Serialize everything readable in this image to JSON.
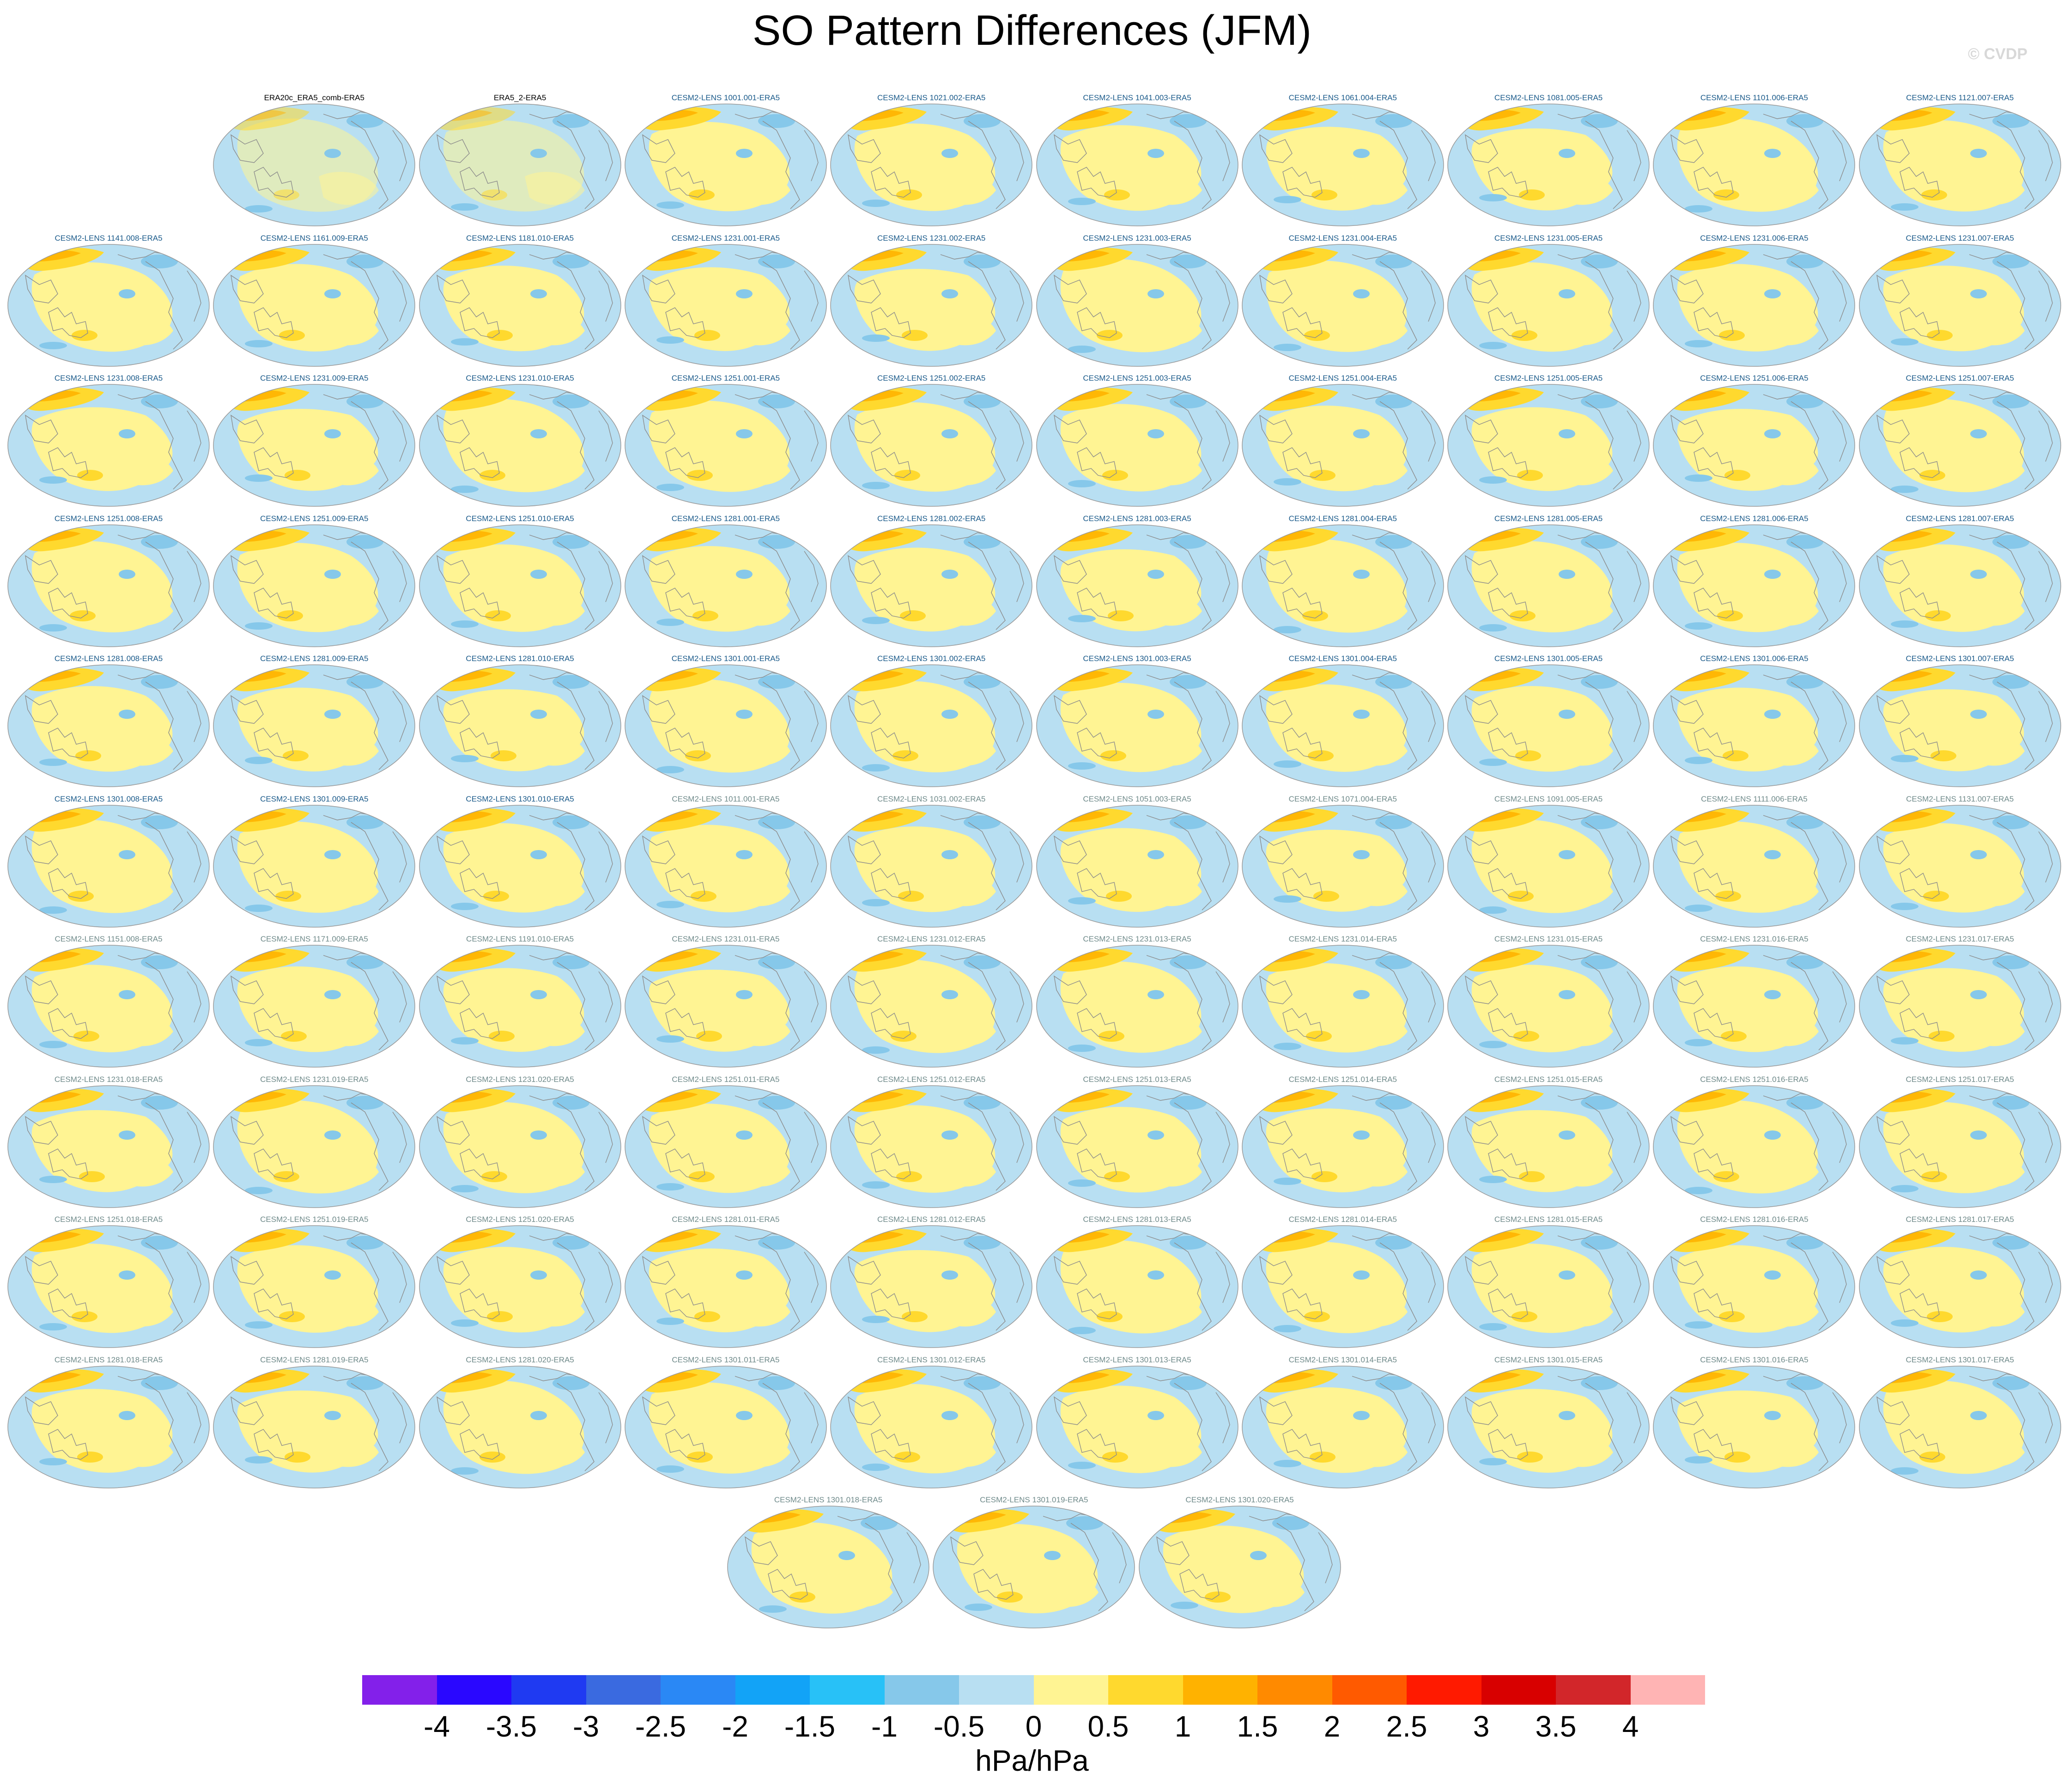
{
  "title": "SO Pattern Differences (JFM)",
  "watermark": "© CVDP",
  "units": "hPa/hPa",
  "colors": {
    "panel_ocean": "#b8dff2",
    "panel_positive": "#fff493",
    "panel_strong_positive": "#ffd92e",
    "panel_high_positive": "#ffb200",
    "panel_negative": "#86c8ea",
    "coastline": "#8c8c8c",
    "label_obs": "#000000",
    "label_set1": "#1a5a8a",
    "label_set2": "#6f8a8a"
  },
  "colorbar": {
    "colors": [
      "#8320ea",
      "#2a07ff",
      "#1f3af2",
      "#3a6ae0",
      "#2a88f5",
      "#12a3f7",
      "#28c1f7",
      "#86c8ea",
      "#b8dff2",
      "#fff493",
      "#ffd92e",
      "#ffb200",
      "#ff8a00",
      "#ff5a00",
      "#ff1a00",
      "#d80000",
      "#d2262a",
      "#ffb4b4"
    ],
    "ticks": [
      "-4",
      "-3.5",
      "-3",
      "-2.5",
      "-2",
      "-1.5",
      "-1",
      "-0.5",
      "0",
      "0.5",
      "1",
      "1.5",
      "2",
      "2.5",
      "3",
      "3.5",
      "4"
    ]
  },
  "panels": [
    {
      "label": "ERA20c_ERA5_comb-ERA5",
      "style": "obs"
    },
    {
      "label": "ERA5_2-ERA5",
      "style": "obs"
    },
    {
      "label": "CESM2-LENS 1001.001-ERA5",
      "style": "set1"
    },
    {
      "label": "CESM2-LENS 1021.002-ERA5",
      "style": "set1"
    },
    {
      "label": "CESM2-LENS 1041.003-ERA5",
      "style": "set1"
    },
    {
      "label": "CESM2-LENS 1061.004-ERA5",
      "style": "set1"
    },
    {
      "label": "CESM2-LENS 1081.005-ERA5",
      "style": "set1"
    },
    {
      "label": "CESM2-LENS 1101.006-ERA5",
      "style": "set1"
    },
    {
      "label": "CESM2-LENS 1121.007-ERA5",
      "style": "set1"
    },
    {
      "label": "CESM2-LENS 1141.008-ERA5",
      "style": "set1"
    },
    {
      "label": "CESM2-LENS 1161.009-ERA5",
      "style": "set1"
    },
    {
      "label": "CESM2-LENS 1181.010-ERA5",
      "style": "set1"
    },
    {
      "label": "CESM2-LENS 1231.001-ERA5",
      "style": "set1"
    },
    {
      "label": "CESM2-LENS 1231.002-ERA5",
      "style": "set1"
    },
    {
      "label": "CESM2-LENS 1231.003-ERA5",
      "style": "set1"
    },
    {
      "label": "CESM2-LENS 1231.004-ERA5",
      "style": "set1"
    },
    {
      "label": "CESM2-LENS 1231.005-ERA5",
      "style": "set1"
    },
    {
      "label": "CESM2-LENS 1231.006-ERA5",
      "style": "set1"
    },
    {
      "label": "CESM2-LENS 1231.007-ERA5",
      "style": "set1"
    },
    {
      "label": "CESM2-LENS 1231.008-ERA5",
      "style": "set1"
    },
    {
      "label": "CESM2-LENS 1231.009-ERA5",
      "style": "set1"
    },
    {
      "label": "CESM2-LENS 1231.010-ERA5",
      "style": "set1"
    },
    {
      "label": "CESM2-LENS 1251.001-ERA5",
      "style": "set1"
    },
    {
      "label": "CESM2-LENS 1251.002-ERA5",
      "style": "set1"
    },
    {
      "label": "CESM2-LENS 1251.003-ERA5",
      "style": "set1"
    },
    {
      "label": "CESM2-LENS 1251.004-ERA5",
      "style": "set1"
    },
    {
      "label": "CESM2-LENS 1251.005-ERA5",
      "style": "set1"
    },
    {
      "label": "CESM2-LENS 1251.006-ERA5",
      "style": "set1"
    },
    {
      "label": "CESM2-LENS 1251.007-ERA5",
      "style": "set1"
    },
    {
      "label": "CESM2-LENS 1251.008-ERA5",
      "style": "set1"
    },
    {
      "label": "CESM2-LENS 1251.009-ERA5",
      "style": "set1"
    },
    {
      "label": "CESM2-LENS 1251.010-ERA5",
      "style": "set1"
    },
    {
      "label": "CESM2-LENS 1281.001-ERA5",
      "style": "set1"
    },
    {
      "label": "CESM2-LENS 1281.002-ERA5",
      "style": "set1"
    },
    {
      "label": "CESM2-LENS 1281.003-ERA5",
      "style": "set1"
    },
    {
      "label": "CESM2-LENS 1281.004-ERA5",
      "style": "set1"
    },
    {
      "label": "CESM2-LENS 1281.005-ERA5",
      "style": "set1"
    },
    {
      "label": "CESM2-LENS 1281.006-ERA5",
      "style": "set1"
    },
    {
      "label": "CESM2-LENS 1281.007-ERA5",
      "style": "set1"
    },
    {
      "label": "CESM2-LENS 1281.008-ERA5",
      "style": "set1"
    },
    {
      "label": "CESM2-LENS 1281.009-ERA5",
      "style": "set1"
    },
    {
      "label": "CESM2-LENS 1281.010-ERA5",
      "style": "set1"
    },
    {
      "label": "CESM2-LENS 1301.001-ERA5",
      "style": "set1"
    },
    {
      "label": "CESM2-LENS 1301.002-ERA5",
      "style": "set1"
    },
    {
      "label": "CESM2-LENS 1301.003-ERA5",
      "style": "set1"
    },
    {
      "label": "CESM2-LENS 1301.004-ERA5",
      "style": "set1"
    },
    {
      "label": "CESM2-LENS 1301.005-ERA5",
      "style": "set1"
    },
    {
      "label": "CESM2-LENS 1301.006-ERA5",
      "style": "set1"
    },
    {
      "label": "CESM2-LENS 1301.007-ERA5",
      "style": "set1"
    },
    {
      "label": "CESM2-LENS 1301.008-ERA5",
      "style": "set1"
    },
    {
      "label": "CESM2-LENS 1301.009-ERA5",
      "style": "set1"
    },
    {
      "label": "CESM2-LENS 1301.010-ERA5",
      "style": "set1"
    },
    {
      "label": "CESM2-LENS 1011.001-ERA5",
      "style": "set2"
    },
    {
      "label": "CESM2-LENS 1031.002-ERA5",
      "style": "set2"
    },
    {
      "label": "CESM2-LENS 1051.003-ERA5",
      "style": "set2"
    },
    {
      "label": "CESM2-LENS 1071.004-ERA5",
      "style": "set2"
    },
    {
      "label": "CESM2-LENS 1091.005-ERA5",
      "style": "set2"
    },
    {
      "label": "CESM2-LENS 1111.006-ERA5",
      "style": "set2"
    },
    {
      "label": "CESM2-LENS 1131.007-ERA5",
      "style": "set2"
    },
    {
      "label": "CESM2-LENS 1151.008-ERA5",
      "style": "set2"
    },
    {
      "label": "CESM2-LENS 1171.009-ERA5",
      "style": "set2"
    },
    {
      "label": "CESM2-LENS 1191.010-ERA5",
      "style": "set2"
    },
    {
      "label": "CESM2-LENS 1231.011-ERA5",
      "style": "set2"
    },
    {
      "label": "CESM2-LENS 1231.012-ERA5",
      "style": "set2"
    },
    {
      "label": "CESM2-LENS 1231.013-ERA5",
      "style": "set2"
    },
    {
      "label": "CESM2-LENS 1231.014-ERA5",
      "style": "set2"
    },
    {
      "label": "CESM2-LENS 1231.015-ERA5",
      "style": "set2"
    },
    {
      "label": "CESM2-LENS 1231.016-ERA5",
      "style": "set2"
    },
    {
      "label": "CESM2-LENS 1231.017-ERA5",
      "style": "set2"
    },
    {
      "label": "CESM2-LENS 1231.018-ERA5",
      "style": "set2"
    },
    {
      "label": "CESM2-LENS 1231.019-ERA5",
      "style": "set2"
    },
    {
      "label": "CESM2-LENS 1231.020-ERA5",
      "style": "set2"
    },
    {
      "label": "CESM2-LENS 1251.011-ERA5",
      "style": "set2"
    },
    {
      "label": "CESM2-LENS 1251.012-ERA5",
      "style": "set2"
    },
    {
      "label": "CESM2-LENS 1251.013-ERA5",
      "style": "set2"
    },
    {
      "label": "CESM2-LENS 1251.014-ERA5",
      "style": "set2"
    },
    {
      "label": "CESM2-LENS 1251.015-ERA5",
      "style": "set2"
    },
    {
      "label": "CESM2-LENS 1251.016-ERA5",
      "style": "set2"
    },
    {
      "label": "CESM2-LENS 1251.017-ERA5",
      "style": "set2"
    },
    {
      "label": "CESM2-LENS 1251.018-ERA5",
      "style": "set2"
    },
    {
      "label": "CESM2-LENS 1251.019-ERA5",
      "style": "set2"
    },
    {
      "label": "CESM2-LENS 1251.020-ERA5",
      "style": "set2"
    },
    {
      "label": "CESM2-LENS 1281.011-ERA5",
      "style": "set2"
    },
    {
      "label": "CESM2-LENS 1281.012-ERA5",
      "style": "set2"
    },
    {
      "label": "CESM2-LENS 1281.013-ERA5",
      "style": "set2"
    },
    {
      "label": "CESM2-LENS 1281.014-ERA5",
      "style": "set2"
    },
    {
      "label": "CESM2-LENS 1281.015-ERA5",
      "style": "set2"
    },
    {
      "label": "CESM2-LENS 1281.016-ERA5",
      "style": "set2"
    },
    {
      "label": "CESM2-LENS 1281.017-ERA5",
      "style": "set2"
    },
    {
      "label": "CESM2-LENS 1281.018-ERA5",
      "style": "set2"
    },
    {
      "label": "CESM2-LENS 1281.019-ERA5",
      "style": "set2"
    },
    {
      "label": "CESM2-LENS 1281.020-ERA5",
      "style": "set2"
    },
    {
      "label": "CESM2-LENS 1301.011-ERA5",
      "style": "set2"
    },
    {
      "label": "CESM2-LENS 1301.012-ERA5",
      "style": "set2"
    },
    {
      "label": "CESM2-LENS 1301.013-ERA5",
      "style": "set2"
    },
    {
      "label": "CESM2-LENS 1301.014-ERA5",
      "style": "set2"
    },
    {
      "label": "CESM2-LENS 1301.015-ERA5",
      "style": "set2"
    },
    {
      "label": "CESM2-LENS 1301.016-ERA5",
      "style": "set2"
    },
    {
      "label": "CESM2-LENS 1301.017-ERA5",
      "style": "set2"
    },
    {
      "label": "CESM2-LENS 1301.018-ERA5",
      "style": "set2"
    },
    {
      "label": "CESM2-LENS 1301.019-ERA5",
      "style": "set2"
    },
    {
      "label": "CESM2-LENS 1301.020-ERA5",
      "style": "set2"
    }
  ]
}
